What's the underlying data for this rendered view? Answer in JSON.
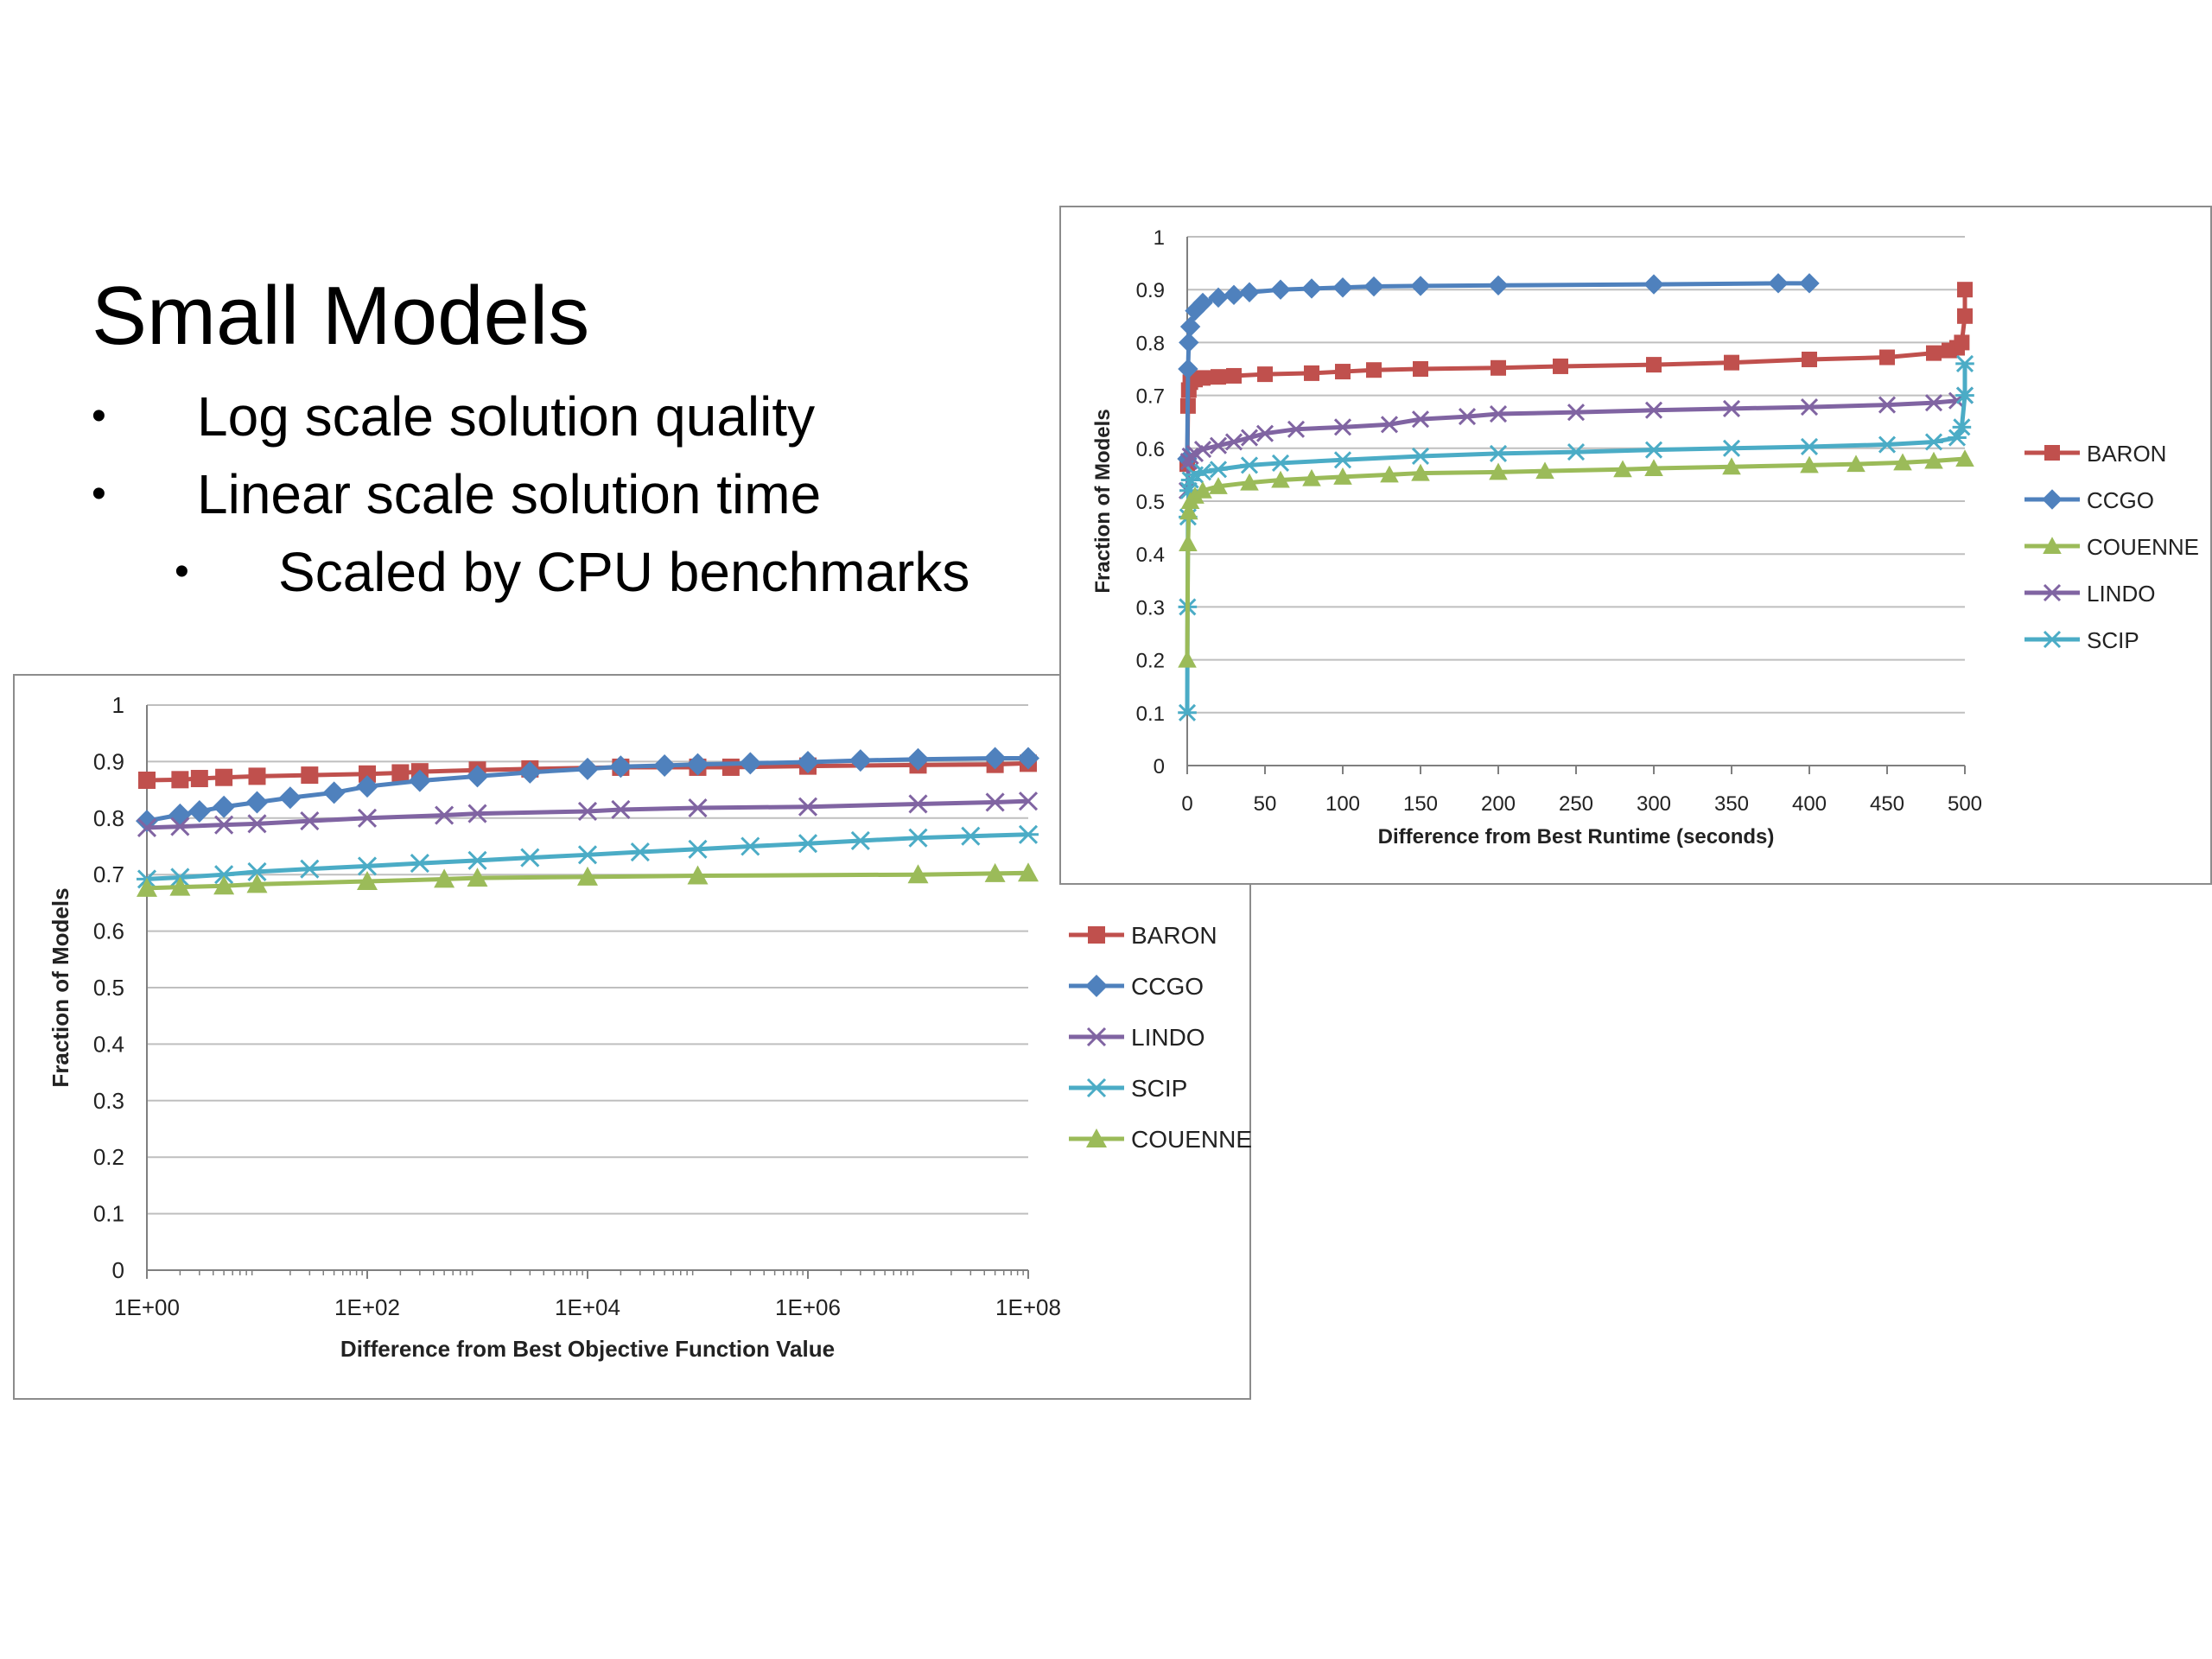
{
  "slide": {
    "title": "Small Models",
    "bullets": [
      {
        "text": "Log scale solution quality",
        "level": 1
      },
      {
        "text": "Linear scale solution time",
        "level": 1
      },
      {
        "text": "Scaled by CPU benchmarks",
        "level": 2
      }
    ],
    "bullet_glyph": "•"
  },
  "chart_data": [
    {
      "type": "line",
      "xscale": "log",
      "xlabel": "Difference from Best Objective Function Value",
      "ylabel": "Fraction of Models",
      "xlim": [
        1,
        100000000
      ],
      "ylim": [
        0,
        1
      ],
      "xticks": [
        1,
        100,
        10000,
        1000000,
        100000000
      ],
      "xtick_labels": [
        "1E+00",
        "1E+02",
        "1E+04",
        "1E+06",
        "1E+08"
      ],
      "yticks": [
        0,
        0.1,
        0.2,
        0.3,
        0.4,
        0.5,
        0.6,
        0.7,
        0.8,
        0.9,
        1
      ],
      "ytick_labels": [
        "0",
        "0.1",
        "0.2",
        "0.3",
        "0.4",
        "0.5",
        "0.6",
        "0.7",
        "0.8",
        "0.9",
        "1"
      ],
      "grid": "horizontal",
      "legend": "right",
      "series": [
        {
          "name": "BARON",
          "color": "#c0504d",
          "marker": "square",
          "x": [
            1,
            2,
            3,
            5,
            10,
            30,
            100,
            200,
            300,
            1000,
            3000,
            20000,
            100000,
            200000,
            1000000,
            10000000,
            50000000,
            100000000
          ],
          "y": [
            0.867,
            0.868,
            0.87,
            0.872,
            0.874,
            0.876,
            0.878,
            0.88,
            0.882,
            0.885,
            0.887,
            0.89,
            0.89,
            0.89,
            0.892,
            0.894,
            0.895,
            0.897
          ]
        },
        {
          "name": "CCGO",
          "color": "#4f81bd",
          "marker": "diamond",
          "x": [
            1,
            2,
            3,
            5,
            10,
            20,
            50,
            100,
            300,
            1000,
            3000,
            10000,
            20000,
            50000,
            100000,
            300000,
            1000000,
            3000000,
            10000000,
            50000000,
            100000000
          ],
          "y": [
            0.795,
            0.806,
            0.812,
            0.82,
            0.828,
            0.836,
            0.845,
            0.856,
            0.866,
            0.874,
            0.881,
            0.887,
            0.891,
            0.893,
            0.895,
            0.897,
            0.899,
            0.902,
            0.904,
            0.906,
            0.906
          ]
        },
        {
          "name": "LINDO",
          "color": "#8064a2",
          "marker": "x",
          "x": [
            1,
            2,
            5,
            10,
            30,
            100,
            500,
            1000,
            10000,
            20000,
            100000,
            1000000,
            10000000,
            50000000,
            100000000
          ],
          "y": [
            0.783,
            0.785,
            0.788,
            0.79,
            0.795,
            0.8,
            0.805,
            0.808,
            0.812,
            0.815,
            0.818,
            0.82,
            0.825,
            0.828,
            0.83
          ]
        },
        {
          "name": "SCIP",
          "color": "#4bacc6",
          "marker": "asterisk",
          "x": [
            1,
            2,
            5,
            10,
            30,
            100,
            300,
            1000,
            3000,
            10000,
            30000,
            100000,
            300000,
            1000000,
            3000000,
            10000000,
            30000000,
            100000000
          ],
          "y": [
            0.692,
            0.695,
            0.7,
            0.705,
            0.71,
            0.715,
            0.72,
            0.725,
            0.73,
            0.735,
            0.74,
            0.745,
            0.75,
            0.755,
            0.76,
            0.765,
            0.768,
            0.771
          ]
        },
        {
          "name": "COUENNE",
          "color": "#9bbb59",
          "marker": "triangle",
          "x": [
            1,
            2,
            5,
            10,
            100,
            500,
            1000,
            10000,
            100000,
            10000000,
            50000000,
            100000000
          ],
          "y": [
            0.676,
            0.678,
            0.68,
            0.683,
            0.688,
            0.692,
            0.694,
            0.696,
            0.698,
            0.7,
            0.702,
            0.703
          ]
        }
      ]
    },
    {
      "type": "line",
      "xlabel": "Difference from Best Runtime (seconds)",
      "ylabel": "Fraction of Models",
      "xlim": [
        0,
        500
      ],
      "ylim": [
        0,
        1
      ],
      "xticks": [
        0,
        50,
        100,
        150,
        200,
        250,
        300,
        350,
        400,
        450,
        500
      ],
      "xtick_labels": [
        "0",
        "50",
        "100",
        "150",
        "200",
        "250",
        "300",
        "350",
        "400",
        "450",
        "500"
      ],
      "yticks": [
        0,
        0.1,
        0.2,
        0.3,
        0.4,
        0.5,
        0.6,
        0.7,
        0.8,
        0.9,
        1
      ],
      "ytick_labels": [
        "0",
        "0.1",
        "0.2",
        "0.3",
        "0.4",
        "0.5",
        "0.6",
        "0.7",
        "0.8",
        "0.9",
        "1"
      ],
      "grid": "horizontal",
      "legend": "right",
      "series": [
        {
          "name": "BARON",
          "color": "#c0504d",
          "marker": "square",
          "x": [
            0,
            0.5,
            1,
            2,
            5,
            10,
            20,
            30,
            50,
            80,
            100,
            120,
            150,
            200,
            240,
            300,
            350,
            400,
            450,
            480,
            490,
            495,
            498,
            500,
            500
          ],
          "y": [
            0.57,
            0.68,
            0.71,
            0.725,
            0.73,
            0.733,
            0.735,
            0.737,
            0.74,
            0.742,
            0.745,
            0.748,
            0.75,
            0.752,
            0.755,
            0.758,
            0.762,
            0.768,
            0.772,
            0.78,
            0.785,
            0.79,
            0.8,
            0.85,
            0.9
          ]
        },
        {
          "name": "CCGO",
          "color": "#4f81bd",
          "marker": "diamond",
          "x": [
            0,
            0.5,
            1,
            2,
            5,
            10,
            20,
            30,
            40,
            60,
            80,
            100,
            120,
            150,
            200,
            300,
            380,
            400
          ],
          "y": [
            0.58,
            0.75,
            0.8,
            0.83,
            0.86,
            0.875,
            0.885,
            0.89,
            0.895,
            0.9,
            0.902,
            0.904,
            0.906,
            0.907,
            0.908,
            0.91,
            0.912,
            0.912
          ]
        },
        {
          "name": "LINDO",
          "color": "#8064a2",
          "marker": "x",
          "x": [
            0,
            1,
            2,
            5,
            10,
            20,
            30,
            40,
            50,
            70,
            100,
            130,
            150,
            180,
            200,
            250,
            300,
            350,
            400,
            450,
            480,
            495,
            500
          ],
          "y": [
            0.52,
            0.575,
            0.585,
            0.59,
            0.598,
            0.605,
            0.612,
            0.62,
            0.628,
            0.636,
            0.64,
            0.645,
            0.655,
            0.66,
            0.665,
            0.668,
            0.672,
            0.675,
            0.678,
            0.682,
            0.686,
            0.69,
            0.7
          ]
        },
        {
          "name": "SCIP",
          "color": "#4bacc6",
          "marker": "asterisk",
          "x": [
            0,
            0.2,
            0.5,
            1,
            2,
            5,
            10,
            20,
            40,
            60,
            100,
            150,
            200,
            250,
            300,
            350,
            400,
            450,
            480,
            495,
            498,
            500,
            500
          ],
          "y": [
            0.1,
            0.3,
            0.47,
            0.52,
            0.54,
            0.55,
            0.555,
            0.56,
            0.568,
            0.572,
            0.578,
            0.585,
            0.59,
            0.593,
            0.597,
            0.6,
            0.603,
            0.607,
            0.612,
            0.62,
            0.64,
            0.7,
            0.76
          ]
        },
        {
          "name": "COUENNE",
          "color": "#9bbb59",
          "marker": "triangle",
          "x": [
            0,
            0.5,
            1,
            2,
            5,
            10,
            20,
            40,
            60,
            80,
            100,
            130,
            150,
            200,
            230,
            280,
            300,
            350,
            400,
            430,
            460,
            480,
            500
          ],
          "y": [
            0.2,
            0.42,
            0.48,
            0.5,
            0.51,
            0.52,
            0.528,
            0.535,
            0.54,
            0.543,
            0.546,
            0.55,
            0.553,
            0.555,
            0.557,
            0.56,
            0.562,
            0.565,
            0.568,
            0.57,
            0.573,
            0.576,
            0.58
          ]
        }
      ]
    }
  ]
}
